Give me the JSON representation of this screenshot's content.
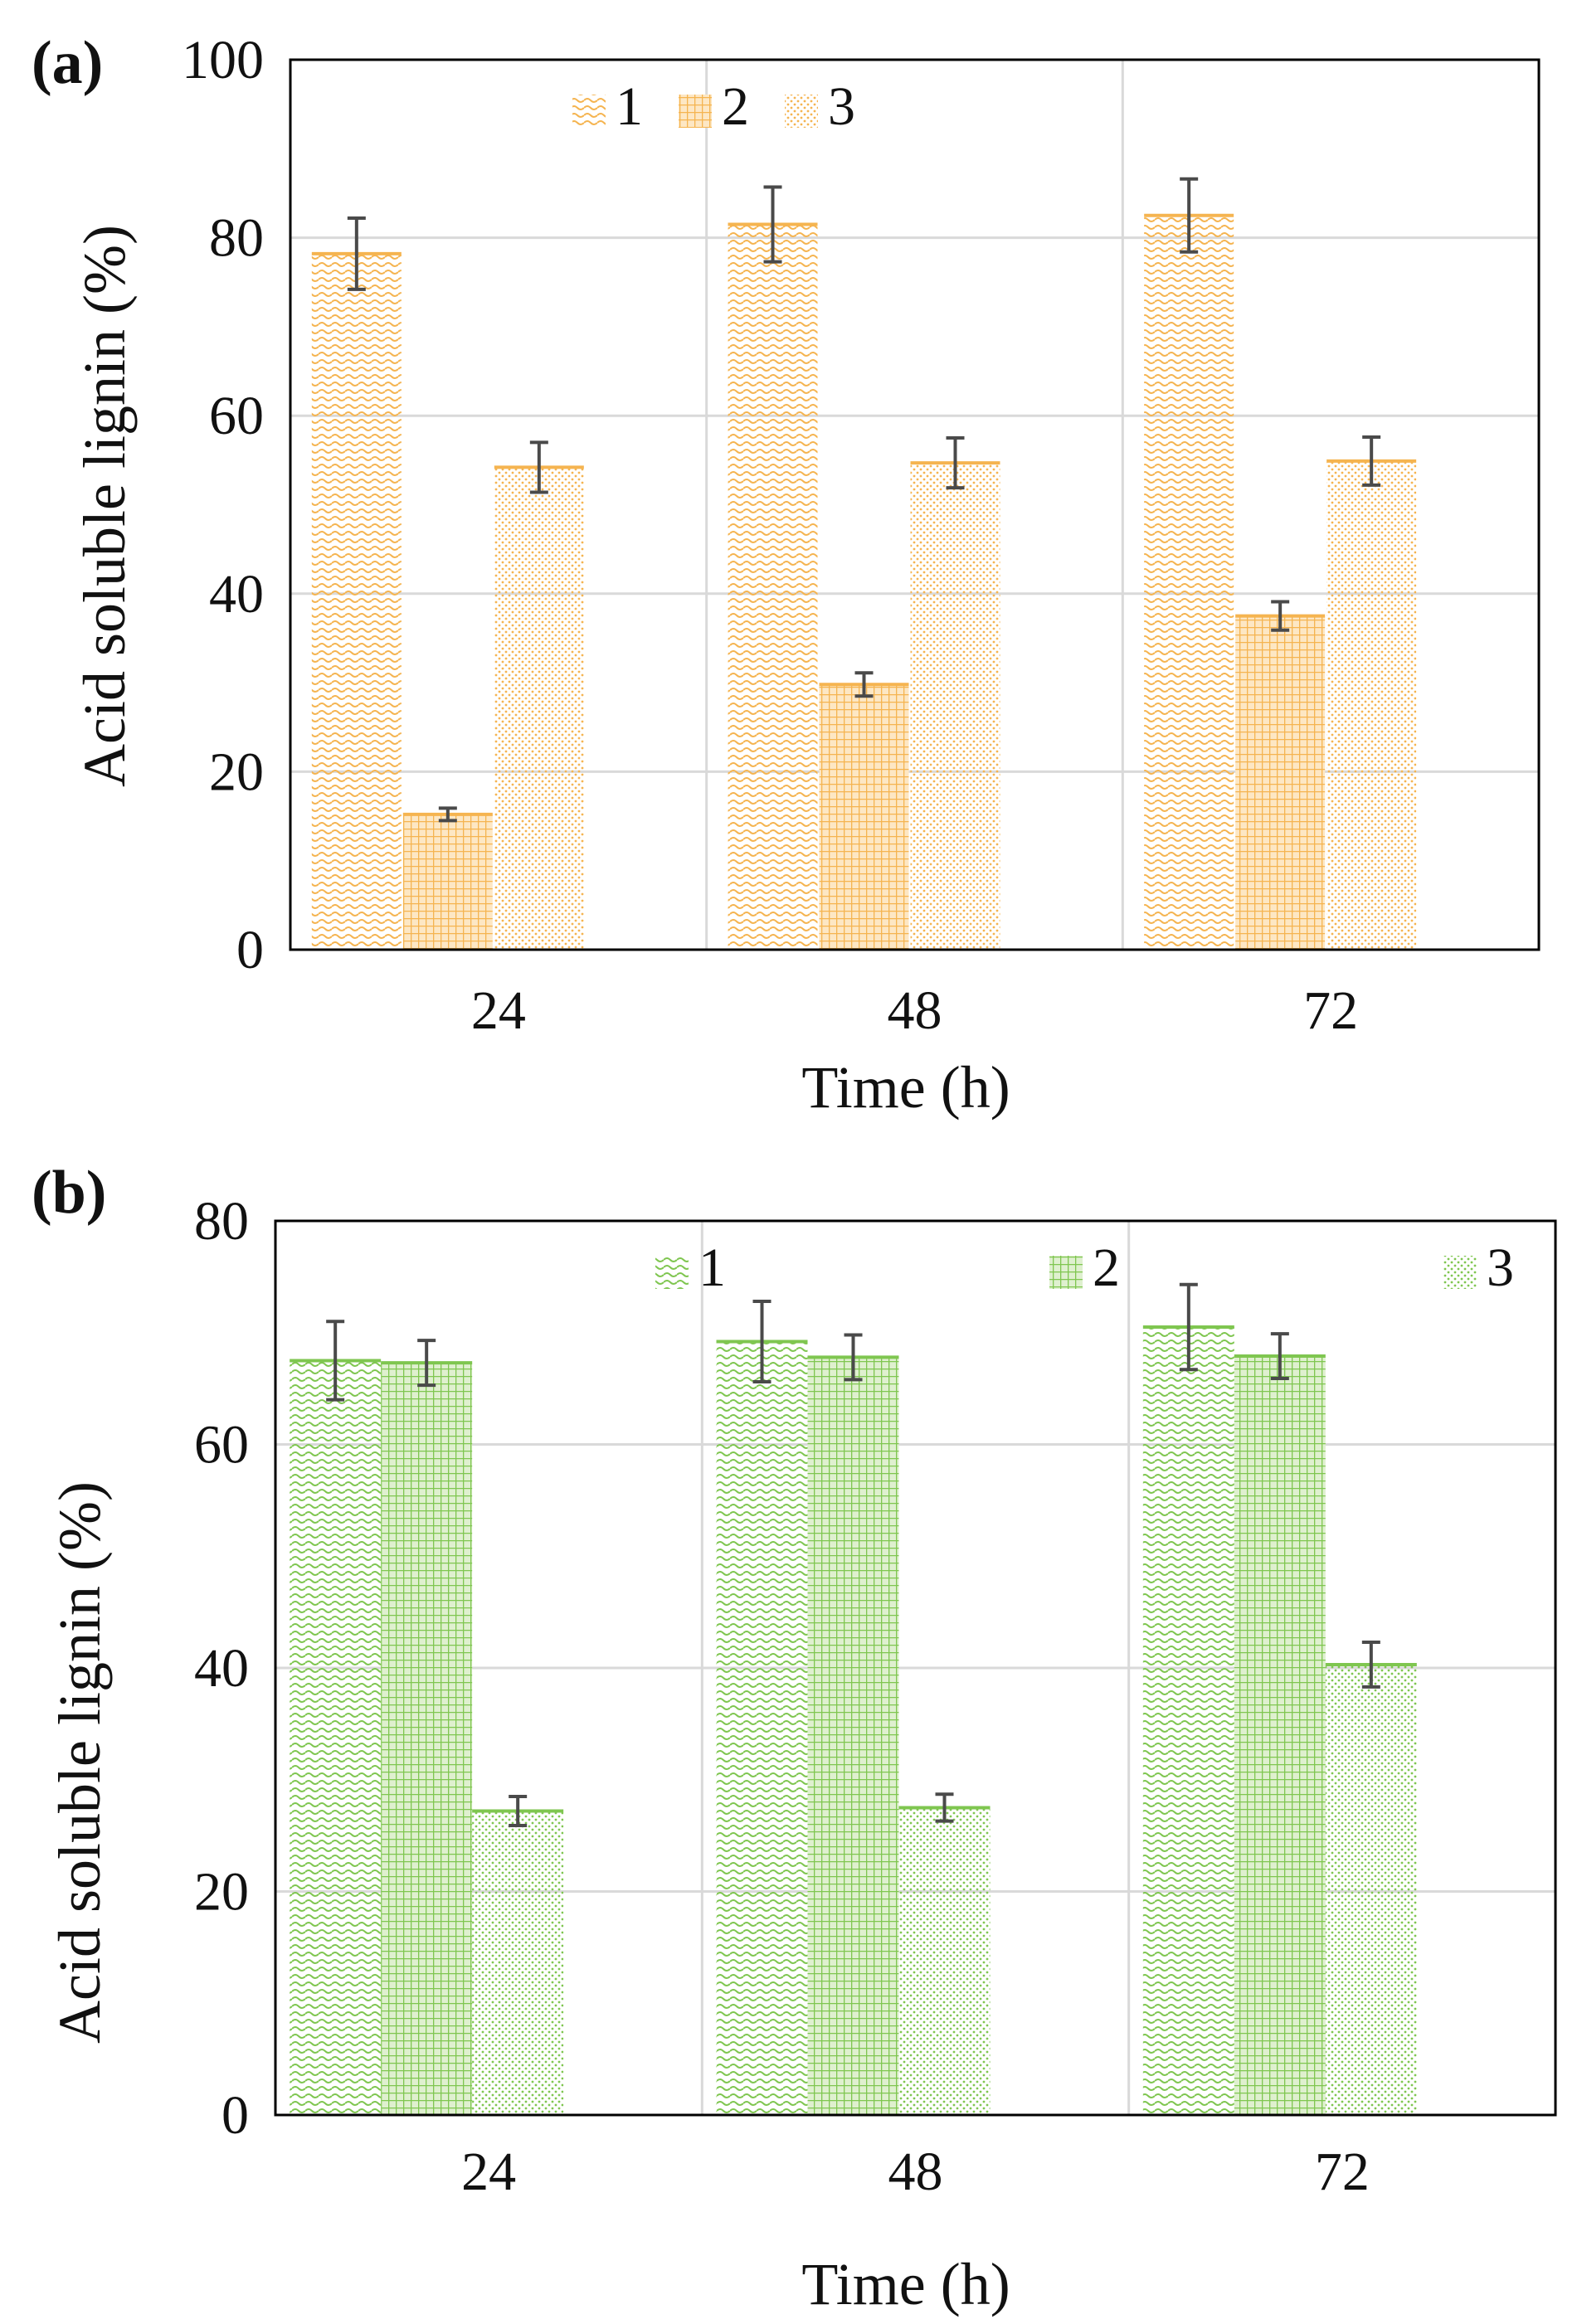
{
  "figure": {
    "palette": {
      "a": "#f5b450",
      "b": "#7fc650",
      "errorbar": "#4a4a4a",
      "grid": "#d9d9d9",
      "frame": "#000000"
    }
  },
  "chart_data": [
    {
      "type": "bar",
      "panel_label": "(a)",
      "title": "",
      "xlabel": "Time (h)",
      "ylabel": "Acid soluble lignin (%)",
      "categories": [
        "24",
        "48",
        "72"
      ],
      "ylim": [
        0,
        100
      ],
      "yticks": [
        0,
        20,
        40,
        60,
        80,
        100
      ],
      "grid": true,
      "legend_position": "top-left",
      "series": [
        {
          "name": "1",
          "pattern": "wave",
          "values": [
            78.2,
            81.5,
            82.5
          ],
          "errors": [
            4.0,
            4.2,
            4.1
          ]
        },
        {
          "name": "2",
          "pattern": "grid",
          "values": [
            15.2,
            29.8,
            37.5
          ],
          "errors": [
            0.7,
            1.3,
            1.6
          ]
        },
        {
          "name": "3",
          "pattern": "dots",
          "values": [
            54.2,
            54.7,
            54.9
          ],
          "errors": [
            2.8,
            2.8,
            2.7
          ]
        }
      ]
    },
    {
      "type": "bar",
      "panel_label": "(b)",
      "title": "",
      "xlabel": "Time (h)",
      "ylabel": "Acid soluble lignin (%)",
      "categories": [
        "24",
        "48",
        "72"
      ],
      "ylim": [
        0,
        80
      ],
      "yticks": [
        0,
        20,
        40,
        60,
        80
      ],
      "grid": true,
      "legend_position": "top-center",
      "series": [
        {
          "name": "1",
          "pattern": "wave",
          "values": [
            67.5,
            69.2,
            70.5
          ],
          "errors": [
            3.5,
            3.6,
            3.8
          ]
        },
        {
          "name": "2",
          "pattern": "grid",
          "values": [
            67.3,
            67.8,
            67.9
          ],
          "errors": [
            2.0,
            2.0,
            2.0
          ]
        },
        {
          "name": "3",
          "pattern": "dots",
          "values": [
            27.2,
            27.5,
            40.3
          ],
          "errors": [
            1.3,
            1.2,
            2.0
          ]
        }
      ]
    }
  ]
}
